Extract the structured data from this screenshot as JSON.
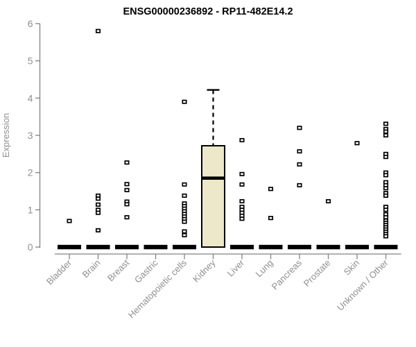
{
  "chart_data": {
    "type": "boxplot",
    "title": "ENSG00000236892 - RP11-482E14.2",
    "xlabel": "",
    "ylabel": "Expression",
    "ylim": [
      0,
      6
    ],
    "yticks": [
      0,
      1,
      2,
      3,
      4,
      5,
      6
    ],
    "grid": false,
    "legend": null,
    "colors": {
      "box_fill": "#EDE8C9",
      "box_border": "#000000",
      "median": "#000000",
      "zero_bar": "#000000",
      "outlier_fill": "#FFFFFF",
      "outlier_border": "#000000",
      "axis": "#828282",
      "tick_label": "#8F8F8F",
      "title": "#000000"
    },
    "categories": [
      "Bladder",
      "Brain",
      "Breast",
      "Gastric",
      "Hematopoietic cells",
      "Kidney",
      "Liver",
      "Lung",
      "Pancreas",
      "Prostate",
      "Skin",
      "Unknown / Other"
    ],
    "boxes": [
      {
        "category": "Bladder",
        "q1": 0,
        "median": 0,
        "q3": 0,
        "whisker_low": 0,
        "whisker_high": 0,
        "outliers": [
          0.7
        ]
      },
      {
        "category": "Brain",
        "q1": 0,
        "median": 0,
        "q3": 0,
        "whisker_low": 0,
        "whisker_high": 0,
        "outliers": [
          5.8,
          1.38,
          1.3,
          1.14,
          1.0,
          0.92,
          0.45
        ]
      },
      {
        "category": "Breast",
        "q1": 0,
        "median": 0,
        "q3": 0,
        "whisker_low": 0,
        "whisker_high": 0,
        "outliers": [
          2.27,
          1.69,
          1.53,
          1.22,
          1.15,
          0.8
        ]
      },
      {
        "category": "Gastric",
        "q1": 0,
        "median": 0,
        "q3": 0,
        "whisker_low": 0,
        "whisker_high": 0,
        "outliers": []
      },
      {
        "category": "Hematopoietic cells",
        "q1": 0,
        "median": 0,
        "q3": 0,
        "whisker_low": 0,
        "whisker_high": 0,
        "outliers": [
          3.9,
          1.68,
          1.38,
          1.17,
          1.1,
          1.03,
          0.96,
          0.89,
          0.82,
          0.75,
          0.68,
          0.42,
          0.32
        ]
      },
      {
        "category": "Kidney",
        "q1": 0,
        "median": 1.85,
        "q3": 2.72,
        "whisker_low": 0,
        "whisker_high": 4.22,
        "outliers": []
      },
      {
        "category": "Liver",
        "q1": 0,
        "median": 0,
        "q3": 0,
        "whisker_low": 0,
        "whisker_high": 0,
        "outliers": [
          2.87,
          1.96,
          1.68,
          1.23,
          1.08,
          1.0,
          0.92,
          0.84,
          0.76
        ]
      },
      {
        "category": "Lung",
        "q1": 0,
        "median": 0,
        "q3": 0,
        "whisker_low": 0,
        "whisker_high": 0,
        "outliers": [
          1.56,
          0.78
        ]
      },
      {
        "category": "Pancreas",
        "q1": 0,
        "median": 0,
        "q3": 0,
        "whisker_low": 0,
        "whisker_high": 0,
        "outliers": [
          3.2,
          2.57,
          2.22,
          1.66
        ]
      },
      {
        "category": "Prostate",
        "q1": 0,
        "median": 0,
        "q3": 0,
        "whisker_low": 0,
        "whisker_high": 0,
        "outliers": [
          1.23
        ]
      },
      {
        "category": "Skin",
        "q1": 0,
        "median": 0,
        "q3": 0,
        "whisker_low": 0,
        "whisker_high": 0,
        "outliers": [
          2.79
        ]
      },
      {
        "category": "Unknown / Other",
        "q1": 0,
        "median": 0,
        "q3": 0,
        "whisker_low": 0,
        "whisker_high": 0,
        "outliers": [
          3.31,
          3.17,
          3.1,
          3.0,
          2.5,
          2.42,
          2.0,
          1.93,
          1.74,
          1.66,
          1.58,
          1.45,
          1.38,
          1.08,
          1.0,
          0.88,
          0.8,
          0.71,
          0.65,
          0.59,
          0.53,
          0.47,
          0.41,
          0.35,
          0.29
        ]
      }
    ]
  }
}
